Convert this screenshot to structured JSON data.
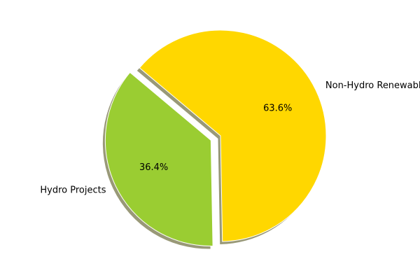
{
  "chart_data": {
    "type": "pie",
    "slices": [
      {
        "label": "Hydro Projects",
        "value": 36.4,
        "pct_label": "36.4%",
        "color": "#9acd32",
        "exploded": true
      },
      {
        "label": "Non-Hydro Renewables",
        "value": 63.6,
        "pct_label": "63.6%",
        "color": "#ffd700",
        "exploded": false
      }
    ],
    "start_angle_deg": 140,
    "shadow": true,
    "shadow_color": "#999978",
    "edge_color": "#ffffff"
  }
}
